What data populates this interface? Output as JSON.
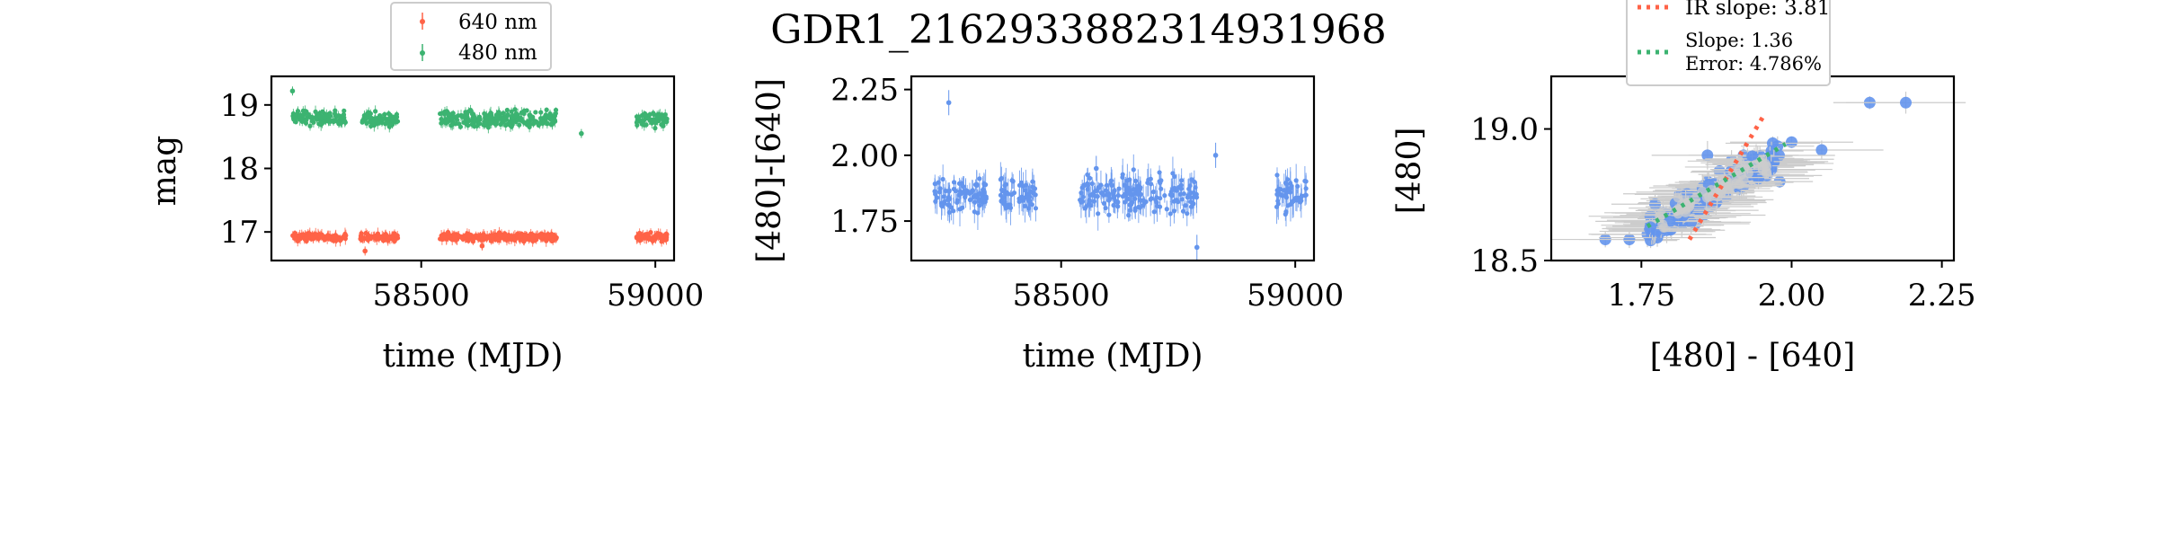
{
  "suptitle": "GDR1_2162933882314931968",
  "colors": {
    "red": "#FF6347",
    "green": "#3CB371",
    "blue": "#6495ED",
    "err": "#cccccc"
  },
  "chart_data": [
    {
      "type": "scatter",
      "id": "lightcurve",
      "xlabel": "time (MJD)",
      "ylabel": "mag",
      "xlim": [
        58180,
        59040
      ],
      "ylim": [
        19.45,
        16.55
      ],
      "y_inverted": true,
      "xticks": [
        58500,
        59000
      ],
      "xtick_labels": [
        "58500",
        "59000"
      ],
      "yticks": [
        17,
        18,
        19
      ],
      "ytick_labels": [
        "17",
        "18",
        "19"
      ],
      "legend_position": "above",
      "legend": [
        "640 nm",
        "480 nm"
      ],
      "series": [
        {
          "name": "640 nm",
          "color": "#FF6347",
          "segments": [
            [
              58225,
              58340
            ],
            [
              58370,
              58450
            ],
            [
              58540,
              58600
            ],
            [
              58600,
              58790
            ],
            [
              58960,
              59025
            ]
          ],
          "level": 16.92,
          "scatter": 0.05,
          "points": [
            [
              58380,
              16.7
            ],
            [
              58630,
              16.78
            ]
          ]
        },
        {
          "name": "480 nm",
          "color": "#3CB371",
          "segments": [
            [
              58225,
              58340
            ],
            [
              58370,
              58450
            ],
            [
              58540,
              58600
            ],
            [
              58600,
              58790
            ],
            [
              58960,
              59025
            ]
          ],
          "level": 18.78,
          "scatter": 0.1,
          "points": [
            [
              58225,
              19.22
            ],
            [
              58842,
              18.55
            ]
          ]
        }
      ]
    },
    {
      "type": "scatter",
      "id": "color",
      "xlabel": "time (MJD)",
      "ylabel": "[480]-[640]",
      "xlim": [
        58180,
        59040
      ],
      "ylim": [
        2.3,
        1.6
      ],
      "y_inverted": true,
      "xticks": [
        58500,
        59000
      ],
      "xtick_labels": [
        "58500",
        "59000"
      ],
      "yticks": [
        1.75,
        2.0,
        2.25
      ],
      "ytick_labels": [
        "1.75",
        "2.00",
        "2.25"
      ],
      "series": [
        {
          "name": "",
          "color": "#6495ED",
          "segments": [
            [
              58225,
              58340
            ],
            [
              58370,
              58450
            ],
            [
              58540,
              58600
            ],
            [
              58600,
              58790
            ],
            [
              58960,
              59025
            ]
          ],
          "level": 1.85,
          "scatter": 0.06,
          "points": [
            [
              58260,
              2.2
            ],
            [
              58790,
              1.65
            ],
            [
              58830,
              2.0
            ],
            [
              58575,
              1.95
            ]
          ]
        }
      ]
    },
    {
      "type": "scatter",
      "id": "cmd",
      "xlabel": "[480] - [640]",
      "ylabel": "[480]",
      "xlim": [
        1.6,
        2.27
      ],
      "ylim": [
        19.2,
        18.5
      ],
      "y_inverted": true,
      "xticks": [
        1.75,
        2.0,
        2.25
      ],
      "xtick_labels": [
        "1.75",
        "2.00",
        "2.25"
      ],
      "yticks": [
        18.5,
        19.0
      ],
      "ytick_labels": [
        "18.5",
        "19.0"
      ],
      "legend_position": "above",
      "legend": [
        "IR slope: 3.81",
        "Slope: 1.36",
        "Error: 4.786%"
      ],
      "fit_lines": [
        {
          "label": "IR slope: 3.81",
          "color": "#FF6347",
          "slope": 3.81,
          "x": [
            1.83,
            1.955
          ],
          "y0": 18.58
        },
        {
          "label": "Slope: 1.36",
          "color": "#3CB371",
          "slope": 1.36,
          "x": [
            1.76,
            1.99
          ],
          "y0": 18.63
        }
      ],
      "points": [
        [
          1.69,
          18.58
        ],
        [
          1.73,
          18.58
        ],
        [
          1.76,
          18.6
        ],
        [
          1.78,
          18.62
        ],
        [
          1.8,
          18.68
        ],
        [
          1.82,
          18.72
        ],
        [
          1.84,
          18.76
        ],
        [
          1.86,
          18.8
        ],
        [
          1.88,
          18.84
        ],
        [
          1.9,
          18.88
        ],
        [
          1.92,
          18.9
        ],
        [
          1.95,
          18.86
        ],
        [
          2.0,
          18.95
        ],
        [
          2.05,
          18.92
        ],
        [
          2.13,
          19.1
        ],
        [
          2.19,
          19.1
        ],
        [
          1.98,
          18.8
        ],
        [
          1.86,
          18.9
        ],
        [
          1.84,
          18.64
        ],
        [
          1.8,
          18.62
        ]
      ]
    }
  ]
}
